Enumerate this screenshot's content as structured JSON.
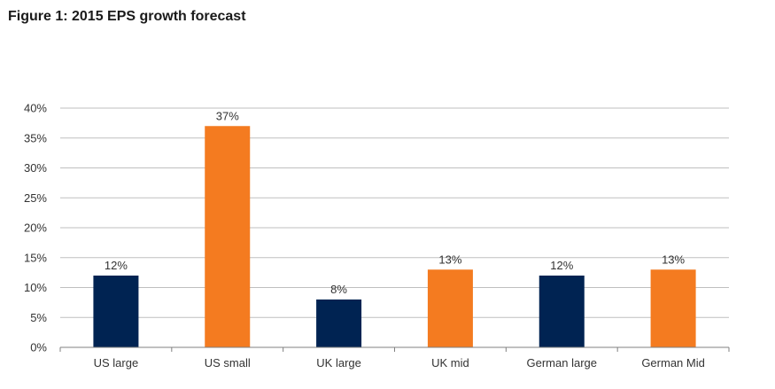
{
  "figure": {
    "title": "Figure 1: 2015 EPS growth forecast"
  },
  "chart_data": {
    "type": "bar",
    "title": "Figure 1: 2015 EPS growth forecast",
    "xlabel": "",
    "ylabel": "",
    "categories": [
      "US large",
      "US small",
      "UK large",
      "UK mid",
      "German  large",
      "German Mid"
    ],
    "values": [
      12,
      37,
      8,
      13,
      12,
      13
    ],
    "value_labels": [
      "12%",
      "37%",
      "8%",
      "13%",
      "12%",
      "13%"
    ],
    "ylim": [
      0,
      40
    ],
    "y_ticks": [
      0,
      5,
      10,
      15,
      20,
      25,
      30,
      35,
      40
    ],
    "y_tick_labels": [
      "0%",
      "5%",
      "10%",
      "15%",
      "20%",
      "25%",
      "30%",
      "35%",
      "40%"
    ],
    "bar_colors": [
      "#002352",
      "#f47b20",
      "#002352",
      "#f47b20",
      "#002352",
      "#f47b20"
    ],
    "grid": true,
    "legend": "none",
    "colors": {
      "navy": "#002352",
      "orange": "#f47b20",
      "grid": "#bfbfbf",
      "axis": "#808080"
    }
  }
}
